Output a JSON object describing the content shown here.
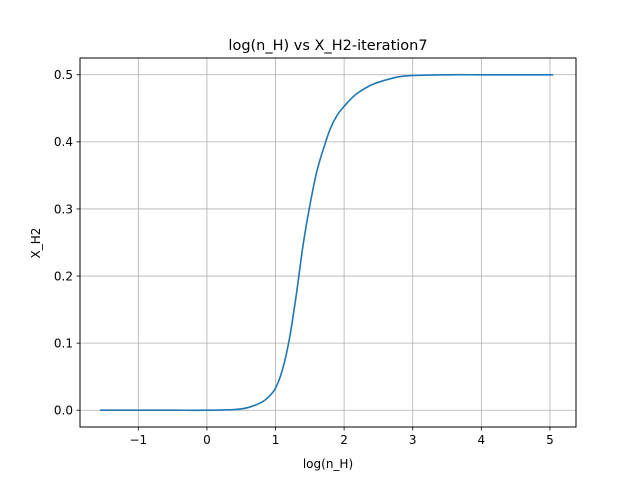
{
  "chart_data": {
    "type": "line",
    "title": "log(n_H) vs X_H2-iteration7",
    "xlabel": "log(n_H)",
    "ylabel": "X_H2",
    "xlim": [
      -1.85,
      5.38
    ],
    "ylim": [
      -0.025,
      0.525
    ],
    "grid": true,
    "x_ticks": [
      -1,
      0,
      1,
      2,
      3,
      4,
      5
    ],
    "x_tick_labels": [
      "−1",
      "0",
      "1",
      "2",
      "3",
      "4",
      "5"
    ],
    "y_ticks": [
      0.0,
      0.1,
      0.2,
      0.3,
      0.4,
      0.5
    ],
    "y_tick_labels": [
      "0.0",
      "0.1",
      "0.2",
      "0.3",
      "0.4",
      "0.5"
    ],
    "series": [
      {
        "color": "#1f77b4",
        "x": [
          -1.55,
          -1.0,
          -0.5,
          0.0,
          0.4,
          0.6,
          0.8,
          0.9,
          1.0,
          1.1,
          1.2,
          1.3,
          1.4,
          1.5,
          1.6,
          1.7,
          1.8,
          1.9,
          2.0,
          2.1,
          2.2,
          2.4,
          2.6,
          2.8,
          3.0,
          3.5,
          4.0,
          4.5,
          5.04
        ],
        "y": [
          0.0,
          0.0,
          0.0,
          0.0,
          0.001,
          0.004,
          0.012,
          0.02,
          0.033,
          0.06,
          0.105,
          0.17,
          0.245,
          0.305,
          0.355,
          0.39,
          0.42,
          0.44,
          0.453,
          0.464,
          0.473,
          0.485,
          0.492,
          0.497,
          0.499,
          0.5,
          0.5,
          0.5,
          0.5
        ]
      }
    ]
  }
}
